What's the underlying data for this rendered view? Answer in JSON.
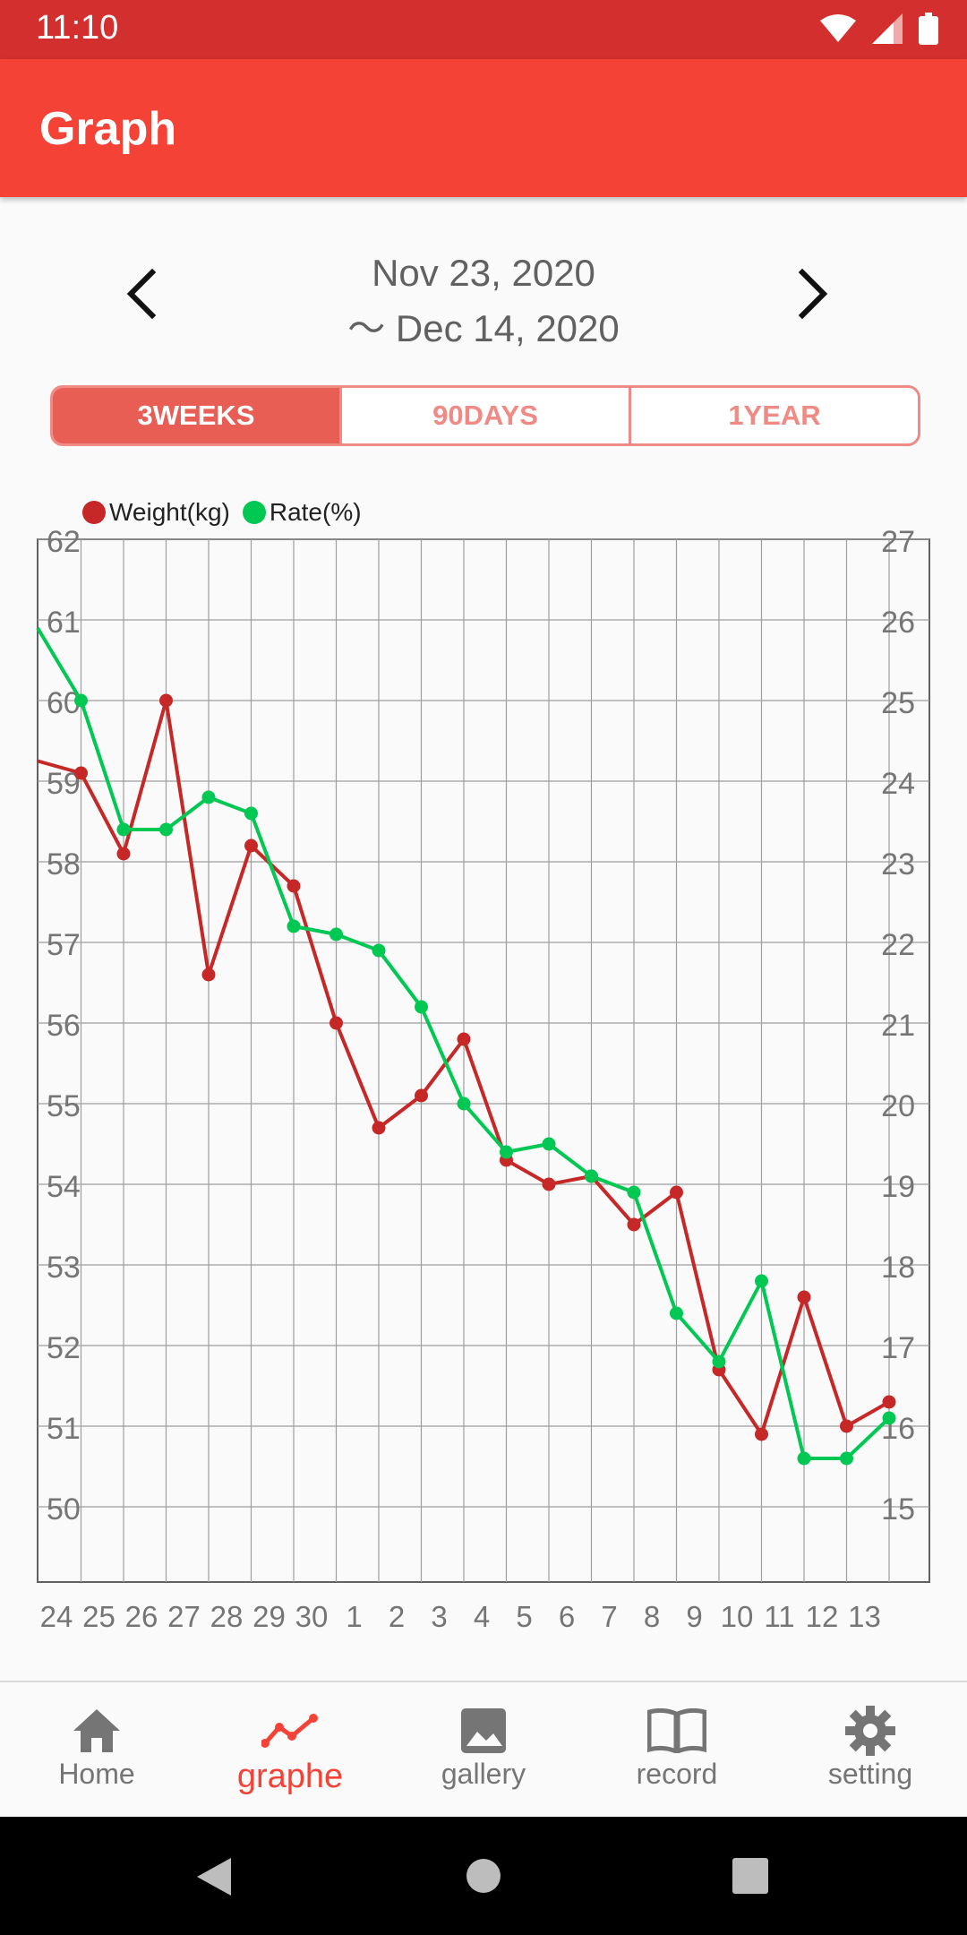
{
  "status_bar": {
    "time": "11:10"
  },
  "app_bar": {
    "title": "Graph"
  },
  "range": {
    "line1": "Nov 23, 2020",
    "line2": "〜 Dec 14, 2020"
  },
  "period_tabs": [
    {
      "label": "3WEEKS",
      "active": true
    },
    {
      "label": "90DAYS",
      "active": false
    },
    {
      "label": "1YEAR",
      "active": false
    }
  ],
  "legend": {
    "weight": "Weight(kg)",
    "rate": "Rate(%)"
  },
  "colors": {
    "weight": "#c62828",
    "rate": "#00c853",
    "accent": "#f44336",
    "grid": "#9e9e9e"
  },
  "chart_data": {
    "type": "line",
    "x": [
      "24",
      "25",
      "26",
      "27",
      "28",
      "29",
      "30",
      "1",
      "2",
      "3",
      "4",
      "5",
      "6",
      "7",
      "8",
      "9",
      "10",
      "11",
      "12",
      "13"
    ],
    "left_axis": {
      "ylim": [
        49,
        62
      ],
      "ticks": [
        50,
        51,
        52,
        53,
        54,
        55,
        56,
        57,
        58,
        59,
        60,
        61,
        62
      ]
    },
    "right_axis": {
      "ylim": [
        14,
        27
      ],
      "ticks": [
        15,
        16,
        17,
        18,
        19,
        20,
        21,
        22,
        23,
        24,
        25,
        26,
        27
      ]
    },
    "series": [
      {
        "name": "Weight(kg)",
        "axis": "left",
        "values": [
          59.1,
          58.1,
          60.0,
          56.6,
          58.2,
          57.7,
          56.0,
          54.7,
          55.1,
          55.8,
          54.3,
          54.0,
          54.1,
          53.5,
          53.9,
          51.7,
          50.9,
          52.6,
          51.0,
          51.3
        ]
      },
      {
        "name": "Rate(%)",
        "axis": "right",
        "values": [
          25.0,
          23.4,
          23.4,
          23.8,
          23.6,
          22.2,
          22.1,
          21.9,
          21.2,
          20.0,
          19.4,
          19.5,
          19.1,
          18.9,
          17.4,
          16.8,
          17.8,
          15.6,
          15.6,
          16.1
        ]
      }
    ]
  },
  "bottom_nav": [
    {
      "label": "Home",
      "icon": "home-icon",
      "active": false
    },
    {
      "label": "graphe",
      "icon": "chart-line-icon",
      "active": true
    },
    {
      "label": "gallery",
      "icon": "image-icon",
      "active": false
    },
    {
      "label": "record",
      "icon": "book-icon",
      "active": false
    },
    {
      "label": "setting",
      "icon": "gear-icon",
      "active": false
    }
  ]
}
